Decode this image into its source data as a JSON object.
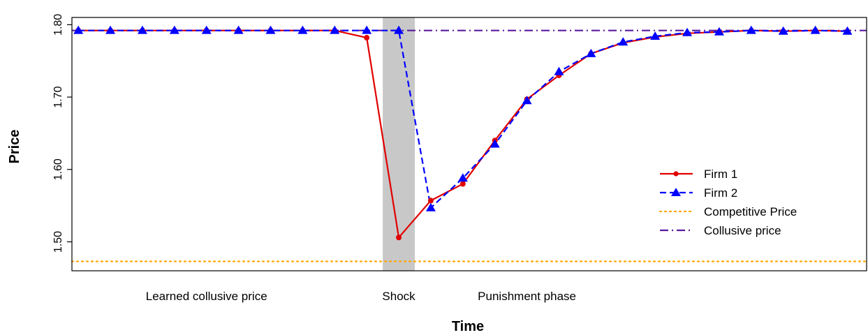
{
  "chart_data": {
    "type": "line",
    "title": "",
    "xlabel": "Time",
    "ylabel": "Price",
    "xlim": [
      -0.2,
      24.6
    ],
    "ylim": [
      1.46,
      1.81
    ],
    "yticks": [
      1.5,
      1.6,
      1.7,
      1.8
    ],
    "ytick_labels": [
      "1.50",
      "1.60",
      "1.70",
      "1.80"
    ],
    "grid": false,
    "legend_position": "right",
    "shock_region": [
      9.5,
      10.5
    ],
    "annotations": [
      {
        "text": "Learned collusive price",
        "x": 4
      },
      {
        "text": "Shock",
        "x": 10
      },
      {
        "text": "Punishment phase",
        "x": 14
      }
    ],
    "series": [
      {
        "name": "Firm 1",
        "color": "#e00000",
        "marker": "circle",
        "line": "solid",
        "x": [
          0,
          1,
          2,
          3,
          4,
          5,
          6,
          7,
          8,
          9,
          10,
          11,
          12,
          13,
          14,
          15,
          16,
          17,
          18,
          19,
          20,
          21,
          22,
          23,
          24
        ],
        "values": [
          1.792,
          1.792,
          1.792,
          1.792,
          1.792,
          1.792,
          1.792,
          1.792,
          1.792,
          1.782,
          1.506,
          1.557,
          1.58,
          1.64,
          1.697,
          1.73,
          1.76,
          1.775,
          1.783,
          1.788,
          1.79,
          1.792,
          1.791,
          1.792,
          1.791
        ]
      },
      {
        "name": "Firm 2",
        "color": "#0000ff",
        "marker": "triangle",
        "line": "dashed",
        "x": [
          0,
          1,
          2,
          3,
          4,
          5,
          6,
          7,
          8,
          9,
          10,
          11,
          12,
          13,
          14,
          15,
          16,
          17,
          18,
          19,
          20,
          21,
          22,
          23,
          24
        ],
        "values": [
          1.792,
          1.792,
          1.792,
          1.792,
          1.792,
          1.792,
          1.792,
          1.792,
          1.792,
          1.792,
          1.792,
          1.547,
          1.588,
          1.635,
          1.695,
          1.735,
          1.76,
          1.776,
          1.784,
          1.789,
          1.79,
          1.792,
          1.791,
          1.792,
          1.791
        ]
      },
      {
        "name": "Competitive Price",
        "color": "#ffa500",
        "line": "dotted",
        "constant": 1.473
      },
      {
        "name": "Collusive price",
        "color": "#5b1a9e",
        "line": "dashdot",
        "constant": 1.792
      }
    ]
  }
}
